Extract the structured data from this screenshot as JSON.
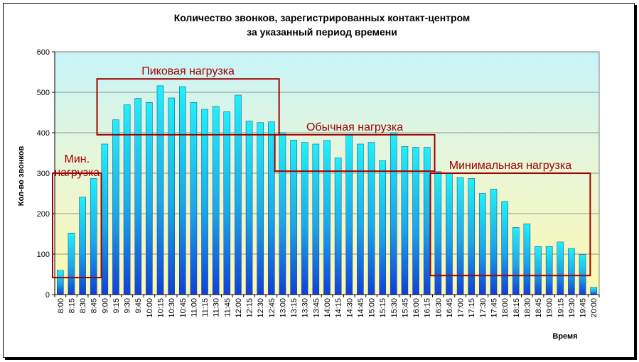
{
  "chart_data": {
    "type": "bar",
    "title": "Количество звонков, зарегистрированных контакт-центром",
    "subtitle": "за указанный период времени",
    "xlabel": "Время",
    "ylabel": "Кол-во звонков",
    "ylim": [
      0,
      600
    ],
    "yticks": [
      "0",
      "100",
      "200",
      "300",
      "400",
      "500",
      "600"
    ],
    "grid": true,
    "categories": [
      "8:00",
      "8:15",
      "8:30",
      "8:45",
      "9:00",
      "9:15",
      "9:30",
      "9:45",
      "10:00",
      "10:15",
      "10:30",
      "10:45",
      "11:00",
      "11:15",
      "11:30",
      "11:45",
      "12:00",
      "12:15",
      "12:30",
      "12:45",
      "13:00",
      "13:15",
      "13:30",
      "13:45",
      "14:00",
      "14:15",
      "14:30",
      "14:45",
      "15:00",
      "15:15",
      "15:30",
      "15:45",
      "16:00",
      "16:15",
      "16:30",
      "16:45",
      "17:00",
      "17:15",
      "17:30",
      "17:45",
      "18:00",
      "18:15",
      "18:30",
      "18:45",
      "19:00",
      "19:15",
      "19:30",
      "19:45",
      "20:00"
    ],
    "values": [
      60,
      152,
      241,
      287,
      372,
      432,
      469,
      485,
      475,
      516,
      486,
      514,
      475,
      458,
      465,
      452,
      493,
      429,
      425,
      427,
      400,
      382,
      376,
      372,
      381,
      338,
      394,
      372,
      376,
      331,
      400,
      366,
      364,
      364,
      304,
      300,
      289,
      287,
      250,
      261,
      230,
      166,
      175,
      119,
      119,
      130,
      114,
      99,
      18
    ],
    "bar_color": "#1ee3f0",
    "annotation_color": "#a00000",
    "annotations": [
      {
        "lines": [
          "Мин.",
          "нагрузка"
        ],
        "from": "8:00",
        "to": "8:45",
        "ymin": 42,
        "ymax": 300
      },
      {
        "lines": [
          "Пиковая нагрузка"
        ],
        "from": "9:00",
        "to": "12:45",
        "ymin": 395,
        "ymax": 533
      },
      {
        "lines": [
          "Обычная нагрузка"
        ],
        "from": "13:00",
        "to": "16:15",
        "ymin": 305,
        "ymax": 395
      },
      {
        "lines": [
          "Минимальная нагрузка"
        ],
        "from": "16:30",
        "to": "19:45",
        "ymin": 47,
        "ymax": 300
      }
    ]
  }
}
